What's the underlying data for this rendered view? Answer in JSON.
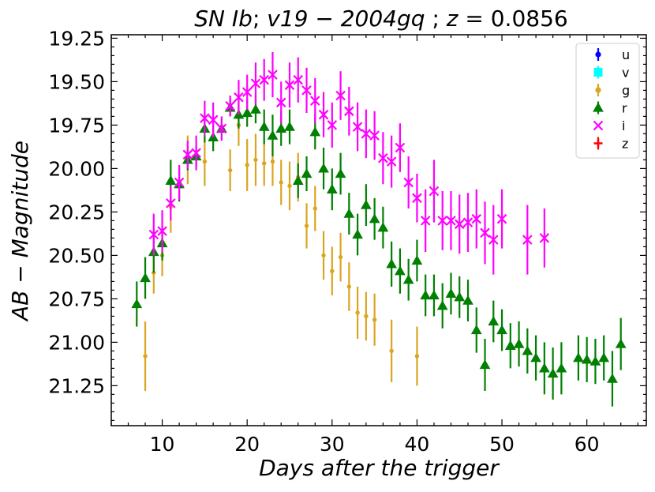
{
  "chart_data": {
    "type": "scatter",
    "title": "SN Ib; v19 − 2004gq ; z = 0.0856",
    "title_parts": {
      "a": "SN Ib",
      "b": "; ",
      "c": "v19 − 2004gq",
      "d": " ; ",
      "e": "z",
      "f": " = 0.0856"
    },
    "xlabel": "Days after the trigger",
    "ylabel": "AB − Magnitude",
    "xlim": [
      4.0,
      67.0
    ],
    "ylim": [
      21.48,
      19.23
    ],
    "y_inverted": true,
    "x_ticks": [
      10,
      20,
      30,
      40,
      50,
      60
    ],
    "x_tick_labels": [
      "10",
      "20",
      "30",
      "40",
      "50",
      "60"
    ],
    "y_ticks": [
      19.25,
      19.5,
      19.75,
      20.0,
      20.25,
      20.5,
      20.75,
      21.0,
      21.25
    ],
    "y_tick_labels": [
      "19.25",
      "19.50",
      "19.75",
      "20.00",
      "20.25",
      "20.50",
      "20.75",
      "21.00",
      "21.25"
    ],
    "legend_position": "top-right",
    "legend": [
      {
        "name": "u",
        "color": "#0000ff",
        "marker": "circle"
      },
      {
        "name": "v",
        "color": "#00ffff",
        "marker": "square"
      },
      {
        "name": "g",
        "color": "#daa520",
        "marker": "circle"
      },
      {
        "name": "r",
        "color": "#008000",
        "marker": "triangle"
      },
      {
        "name": "i",
        "color": "#ff00ff",
        "marker": "x"
      },
      {
        "name": "z",
        "color": "#ff0000",
        "marker": "plus"
      }
    ],
    "series": [
      {
        "name": "g",
        "color": "#daa520",
        "marker": "circle",
        "x": [
          8,
          9,
          10,
          11,
          13,
          15,
          18,
          19,
          20,
          21,
          22,
          23,
          24,
          25,
          26,
          27,
          28,
          29,
          30,
          31,
          32,
          33,
          34,
          35,
          37,
          40
        ],
        "y": [
          21.08,
          20.6,
          20.5,
          20.22,
          19.95,
          19.96,
          20.01,
          19.75,
          19.98,
          19.95,
          19.97,
          19.96,
          20.08,
          20.1,
          20.05,
          20.33,
          20.23,
          20.5,
          20.59,
          20.51,
          20.68,
          20.83,
          20.85,
          20.87,
          21.05,
          21.08
        ],
        "err": [
          0.2,
          0.12,
          0.12,
          0.15,
          0.14,
          0.14,
          0.12,
          0.12,
          0.15,
          0.15,
          0.13,
          0.14,
          0.13,
          0.14,
          0.14,
          0.13,
          0.13,
          0.14,
          0.14,
          0.14,
          0.14,
          0.15,
          0.14,
          0.15,
          0.18,
          0.17
        ]
      },
      {
        "name": "r",
        "color": "#008000",
        "marker": "triangle",
        "x": [
          7,
          8,
          9,
          10,
          11,
          12,
          13,
          14,
          15,
          16,
          17,
          18,
          19,
          20,
          21,
          22,
          23,
          24,
          25,
          26,
          27,
          28,
          29,
          30,
          31,
          32,
          33,
          34,
          35,
          36,
          37,
          38,
          39,
          40,
          41,
          42,
          43,
          44,
          45,
          46,
          47,
          48,
          49,
          50,
          51,
          52,
          53,
          54,
          55,
          56,
          57,
          59,
          60,
          61,
          62,
          63,
          64
        ],
        "y": [
          20.78,
          20.63,
          20.48,
          20.43,
          20.07,
          20.09,
          19.95,
          19.93,
          19.77,
          19.82,
          19.77,
          19.65,
          19.69,
          19.68,
          19.66,
          19.76,
          19.81,
          19.77,
          19.76,
          20.07,
          20.03,
          19.79,
          20.0,
          20.12,
          20.03,
          20.26,
          20.38,
          20.21,
          20.29,
          20.34,
          20.55,
          20.59,
          20.64,
          20.53,
          20.73,
          20.73,
          20.79,
          20.72,
          20.74,
          20.76,
          20.93,
          21.13,
          20.88,
          20.93,
          21.02,
          21.01,
          21.05,
          21.09,
          21.15,
          21.18,
          21.15,
          21.09,
          21.1,
          21.11,
          21.09,
          21.21,
          21.01
        ],
        "err": [
          0.13,
          0.12,
          0.12,
          0.1,
          0.12,
          0.1,
          0.06,
          0.06,
          0.08,
          0.08,
          0.06,
          0.05,
          0.08,
          0.08,
          0.08,
          0.1,
          0.12,
          0.1,
          0.1,
          0.1,
          0.1,
          0.1,
          0.12,
          0.12,
          0.12,
          0.12,
          0.12,
          0.12,
          0.12,
          0.12,
          0.13,
          0.13,
          0.12,
          0.12,
          0.12,
          0.12,
          0.13,
          0.12,
          0.12,
          0.12,
          0.13,
          0.15,
          0.12,
          0.12,
          0.13,
          0.13,
          0.13,
          0.13,
          0.15,
          0.15,
          0.15,
          0.13,
          0.13,
          0.13,
          0.13,
          0.16,
          0.15
        ]
      },
      {
        "name": "i",
        "color": "#ff00ff",
        "marker": "x",
        "x": [
          9,
          10,
          11,
          12,
          13,
          14,
          15,
          16,
          17,
          18,
          19,
          20,
          21,
          22,
          23,
          24,
          25,
          26,
          27,
          28,
          29,
          30,
          31,
          32,
          33,
          34,
          35,
          36,
          37,
          38,
          39,
          40,
          41,
          42,
          43,
          44,
          45,
          46,
          47,
          48,
          49,
          50,
          53,
          55
        ],
        "y": [
          20.38,
          20.36,
          20.2,
          20.08,
          19.92,
          19.91,
          19.71,
          19.72,
          19.77,
          19.64,
          19.59,
          19.56,
          19.51,
          19.49,
          19.46,
          19.62,
          19.52,
          19.49,
          19.55,
          19.61,
          19.69,
          19.75,
          19.58,
          19.67,
          19.76,
          19.8,
          19.81,
          19.94,
          19.96,
          19.88,
          20.08,
          20.17,
          20.3,
          20.13,
          20.3,
          20.3,
          20.32,
          20.31,
          20.29,
          20.37,
          20.41,
          20.29,
          20.41,
          20.4
        ],
        "err": [
          0.12,
          0.12,
          0.1,
          0.1,
          0.08,
          0.1,
          0.1,
          0.1,
          0.07,
          0.06,
          0.1,
          0.1,
          0.12,
          0.12,
          0.13,
          0.12,
          0.13,
          0.13,
          0.13,
          0.13,
          0.13,
          0.13,
          0.14,
          0.14,
          0.14,
          0.14,
          0.14,
          0.15,
          0.15,
          0.14,
          0.15,
          0.14,
          0.18,
          0.18,
          0.17,
          0.17,
          0.17,
          0.17,
          0.17,
          0.18,
          0.2,
          0.17,
          0.2,
          0.17
        ]
      }
    ]
  }
}
